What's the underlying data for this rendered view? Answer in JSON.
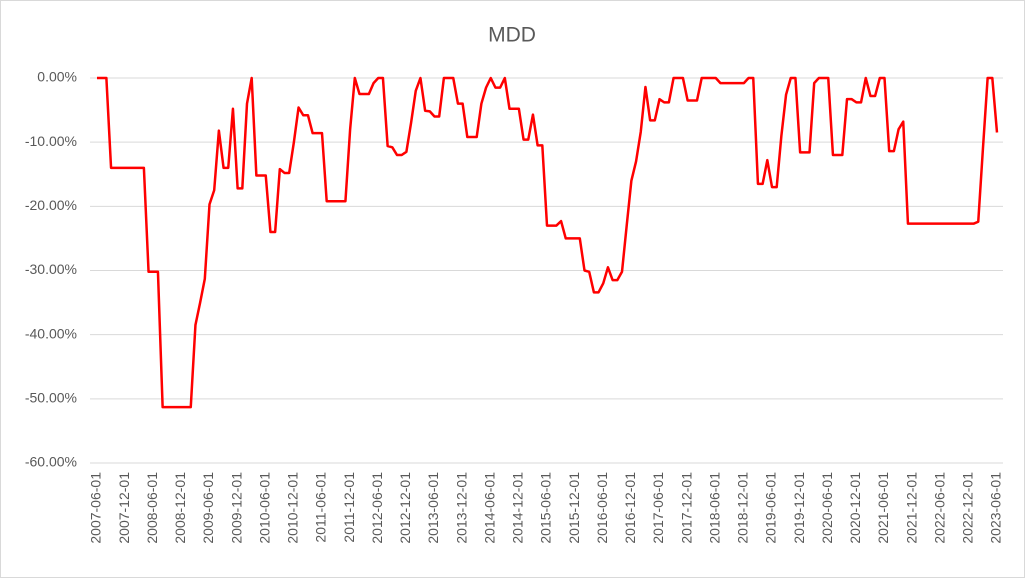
{
  "chart_data": {
    "type": "line",
    "title": "MDD",
    "color": "#ff0000",
    "grid": true,
    "ylim": [
      -60,
      0
    ],
    "yticks": [
      {
        "value": 0,
        "label": "0.00%"
      },
      {
        "value": -10,
        "label": "-10.00%"
      },
      {
        "value": -20,
        "label": "-20.00%"
      },
      {
        "value": -30,
        "label": "-30.00%"
      },
      {
        "value": -40,
        "label": "-40.00%"
      },
      {
        "value": -50,
        "label": "-50.00%"
      },
      {
        "value": -60,
        "label": "-60.00%"
      }
    ],
    "categories": [
      "2007-06-01",
      null,
      null,
      null,
      null,
      null,
      "2007-12-01",
      null,
      null,
      null,
      null,
      null,
      "2008-06-01",
      null,
      null,
      null,
      null,
      null,
      "2008-12-01",
      null,
      null,
      null,
      null,
      null,
      "2009-06-01",
      null,
      null,
      null,
      null,
      null,
      "2009-12-01",
      null,
      null,
      null,
      null,
      null,
      "2010-06-01",
      null,
      null,
      null,
      null,
      null,
      "2010-12-01",
      null,
      null,
      null,
      null,
      null,
      "2011-06-01",
      null,
      null,
      null,
      null,
      null,
      "2011-12-01",
      null,
      null,
      null,
      null,
      null,
      "2012-06-01",
      null,
      null,
      null,
      null,
      null,
      "2012-12-01",
      null,
      null,
      null,
      null,
      null,
      "2013-06-01",
      null,
      null,
      null,
      null,
      null,
      "2013-12-01",
      null,
      null,
      null,
      null,
      null,
      "2014-06-01",
      null,
      null,
      null,
      null,
      null,
      "2014-12-01",
      null,
      null,
      null,
      null,
      null,
      "2015-06-01",
      null,
      null,
      null,
      null,
      null,
      "2015-12-01",
      null,
      null,
      null,
      null,
      null,
      "2016-06-01",
      null,
      null,
      null,
      null,
      null,
      "2016-12-01",
      null,
      null,
      null,
      null,
      null,
      "2017-06-01",
      null,
      null,
      null,
      null,
      null,
      "2017-12-01",
      null,
      null,
      null,
      null,
      null,
      "2018-06-01",
      null,
      null,
      null,
      null,
      null,
      "2018-12-01",
      null,
      null,
      null,
      null,
      null,
      "2019-06-01",
      null,
      null,
      null,
      null,
      null,
      "2019-12-01",
      null,
      null,
      null,
      null,
      null,
      "2020-06-01",
      null,
      null,
      null,
      null,
      null,
      "2020-12-01",
      null,
      null,
      null,
      null,
      null,
      "2021-06-01",
      null,
      null,
      null,
      null,
      null,
      "2021-12-01",
      null,
      null,
      null,
      null,
      null,
      "2022-06-01",
      null,
      null,
      null,
      null,
      null,
      "2022-12-01",
      null,
      null,
      null,
      null,
      null,
      "2023-06-01"
    ],
    "values": [
      0,
      0,
      0,
      -14,
      -14,
      -14,
      -14,
      -14,
      -14,
      -14,
      -14,
      -30.2,
      -30.2,
      -30.2,
      -51.3,
      -51.3,
      -51.3,
      -51.3,
      -51.3,
      -51.3,
      -51.3,
      -38.5,
      -35,
      -31.3,
      -19.7,
      -17.5,
      -8.2,
      -14,
      -14,
      -4.8,
      -17.2,
      -17.2,
      -4,
      0,
      -15.2,
      -15.2,
      -15.2,
      -24,
      -24,
      -14.2,
      -14.8,
      -14.8,
      -10,
      -4.6,
      -5.8,
      -5.8,
      -8.6,
      -8.6,
      -8.6,
      -19.2,
      -19.2,
      -19.2,
      -19.2,
      -19.2,
      -8,
      0,
      -2.5,
      -2.5,
      -2.5,
      -0.8,
      0,
      0,
      -10.6,
      -10.8,
      -12,
      -12,
      -11.5,
      -7,
      -2,
      0,
      -5.1,
      -5.2,
      -6,
      -6,
      0,
      0,
      0,
      -4,
      -4,
      -9.2,
      -9.2,
      -9.2,
      -4,
      -1.5,
      0,
      -1.5,
      -1.5,
      0,
      -4.8,
      -4.8,
      -4.8,
      -9.6,
      -9.6,
      -5.7,
      -10.5,
      -10.5,
      -23,
      -23,
      -23,
      -22.3,
      -25,
      -25,
      -25,
      -25,
      -30,
      -30.2,
      -33.4,
      -33.4,
      -32,
      -29.5,
      -31.5,
      -31.5,
      -30.2,
      -23,
      -16,
      -13,
      -8.4,
      -1.4,
      -6.6,
      -6.6,
      -3.3,
      -3.8,
      -3.8,
      0,
      0,
      0,
      -3.5,
      -3.5,
      -3.5,
      0,
      0,
      0,
      0,
      -0.8,
      -0.8,
      -0.8,
      -0.8,
      -0.8,
      -0.8,
      0,
      0,
      -16.5,
      -16.5,
      -12.8,
      -17,
      -17,
      -9,
      -2.6,
      0,
      0,
      -11.6,
      -11.6,
      -11.6,
      -0.8,
      0,
      0,
      0,
      -12,
      -12,
      -12,
      -3.3,
      -3.3,
      -3.8,
      -3.8,
      0,
      -2.8,
      -2.8,
      0,
      0,
      -11.4,
      -11.4,
      -8,
      -6.8,
      -22.7,
      -22.7,
      -22.7,
      -22.7,
      -22.7,
      -22.7,
      -22.7,
      -22.7,
      -22.7,
      -22.7,
      -22.7,
      -22.7,
      -22.7,
      -22.7,
      -22.7,
      -22.4,
      -11,
      0,
      0,
      -8.5
    ]
  }
}
